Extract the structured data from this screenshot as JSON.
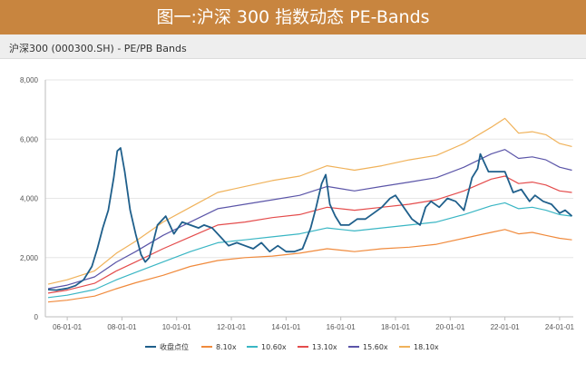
{
  "banner": {
    "title": "图一:沪深 300 指数动态 PE-Bands"
  },
  "header": {
    "subtitle": "沪深300 (000300.SH) - PE/PB Bands"
  },
  "chart_data": {
    "type": "line",
    "title": "沪深300 (000300.SH) - PE/PB Bands",
    "xlabel": "",
    "ylabel": "",
    "ylim": [
      0,
      8000
    ],
    "xlim": [
      2005.2,
      2024.5
    ],
    "grid": true,
    "legend": "bottom",
    "yticks": [
      "0",
      "2,000",
      "4,000",
      "6,000",
      "8,000"
    ],
    "ytick_values": [
      0,
      2000,
      4000,
      6000,
      8000
    ],
    "xticks": [
      "06-01-01",
      "08-01-01",
      "10-01-01",
      "12-01-01",
      "14-01-01",
      "16-01-01",
      "18-01-01",
      "20-01-01",
      "22-01-01",
      "24-01-01"
    ],
    "xtick_values": [
      2006,
      2008,
      2010,
      2012,
      2014,
      2016,
      2018,
      2020,
      2022,
      2024
    ],
    "series": [
      {
        "name": "收盘点位",
        "color": "#1f5f8b",
        "x": [
          2005.3,
          2005.6,
          2006.0,
          2006.3,
          2006.6,
          2006.9,
          2007.1,
          2007.3,
          2007.5,
          2007.7,
          2007.83,
          2007.95,
          2008.1,
          2008.3,
          2008.5,
          2008.7,
          2008.85,
          2009.0,
          2009.3,
          2009.6,
          2009.9,
          2010.2,
          2010.5,
          2010.8,
          2011.0,
          2011.3,
          2011.6,
          2011.9,
          2012.2,
          2012.5,
          2012.8,
          2013.1,
          2013.4,
          2013.7,
          2014.0,
          2014.3,
          2014.6,
          2014.9,
          2015.1,
          2015.3,
          2015.45,
          2015.6,
          2015.8,
          2016.0,
          2016.3,
          2016.6,
          2016.9,
          2017.2,
          2017.5,
          2017.8,
          2018.0,
          2018.3,
          2018.6,
          2018.9,
          2019.1,
          2019.3,
          2019.6,
          2019.9,
          2020.2,
          2020.5,
          2020.8,
          2021.0,
          2021.1,
          2021.4,
          2021.7,
          2022.0,
          2022.3,
          2022.6,
          2022.9,
          2023.1,
          2023.4,
          2023.7,
          2024.0,
          2024.2,
          2024.45
        ],
        "y": [
          920,
          900,
          960,
          1050,
          1250,
          1700,
          2300,
          3000,
          3600,
          4700,
          5600,
          5700,
          4900,
          3600,
          2800,
          2100,
          1850,
          2000,
          3100,
          3400,
          2800,
          3200,
          3100,
          3000,
          3100,
          3000,
          2700,
          2400,
          2500,
          2400,
          2300,
          2500,
          2200,
          2400,
          2200,
          2200,
          2300,
          3000,
          3700,
          4500,
          4800,
          3800,
          3400,
          3100,
          3100,
          3300,
          3300,
          3500,
          3700,
          4000,
          4100,
          3700,
          3300,
          3100,
          3700,
          3900,
          3700,
          4000,
          3900,
          3600,
          4700,
          5000,
          5500,
          4900,
          4900,
          4900,
          4200,
          4300,
          3900,
          4100,
          3900,
          3800,
          3500,
          3600,
          3400
        ]
      },
      {
        "name": "8.10x",
        "color": "#f08a3c",
        "x": [
          2005.3,
          2006.0,
          2007.0,
          2007.8,
          2008.5,
          2009.5,
          2010.5,
          2011.5,
          2012.5,
          2013.5,
          2014.5,
          2015.5,
          2016.5,
          2017.5,
          2018.5,
          2019.5,
          2020.5,
          2021.5,
          2022.0,
          2022.5,
          2023.0,
          2023.5,
          2024.0,
          2024.45
        ],
        "y": [
          500,
          560,
          700,
          950,
          1150,
          1400,
          1700,
          1900,
          2000,
          2050,
          2150,
          2300,
          2200,
          2300,
          2350,
          2450,
          2650,
          2850,
          2950,
          2800,
          2850,
          2750,
          2650,
          2600
        ]
      },
      {
        "name": "10.60x",
        "color": "#3ab6c4",
        "x": [
          2005.3,
          2006.0,
          2007.0,
          2007.8,
          2008.5,
          2009.5,
          2010.5,
          2011.5,
          2012.5,
          2013.5,
          2014.5,
          2015.5,
          2016.5,
          2017.5,
          2018.5,
          2019.5,
          2020.5,
          2021.5,
          2022.0,
          2022.5,
          2023.0,
          2023.5,
          2024.0,
          2024.45
        ],
        "y": [
          650,
          730,
          920,
          1250,
          1500,
          1850,
          2200,
          2500,
          2600,
          2700,
          2800,
          3000,
          2900,
          3000,
          3100,
          3200,
          3450,
          3750,
          3850,
          3650,
          3700,
          3600,
          3450,
          3400
        ]
      },
      {
        "name": "13.10x",
        "color": "#e44c4c",
        "x": [
          2005.3,
          2006.0,
          2007.0,
          2007.8,
          2008.5,
          2009.5,
          2010.5,
          2011.5,
          2012.5,
          2013.5,
          2014.5,
          2015.5,
          2016.5,
          2017.5,
          2018.5,
          2019.5,
          2020.5,
          2021.5,
          2022.0,
          2022.5,
          2023.0,
          2023.5,
          2024.0,
          2024.45
        ],
        "y": [
          800,
          900,
          1130,
          1550,
          1850,
          2300,
          2700,
          3100,
          3200,
          3350,
          3450,
          3700,
          3600,
          3700,
          3800,
          3950,
          4250,
          4650,
          4750,
          4500,
          4550,
          4450,
          4250,
          4200
        ]
      },
      {
        "name": "15.60x",
        "color": "#5b55a8",
        "x": [
          2005.3,
          2006.0,
          2007.0,
          2007.8,
          2008.5,
          2009.5,
          2010.5,
          2011.5,
          2012.5,
          2013.5,
          2014.5,
          2015.5,
          2016.5,
          2017.5,
          2018.5,
          2019.5,
          2020.5,
          2021.5,
          2022.0,
          2022.5,
          2023.0,
          2023.5,
          2024.0,
          2024.45
        ],
        "y": [
          950,
          1070,
          1350,
          1850,
          2200,
          2750,
          3200,
          3650,
          3800,
          3950,
          4100,
          4400,
          4250,
          4400,
          4550,
          4700,
          5050,
          5500,
          5650,
          5350,
          5400,
          5300,
          5050,
          4950
        ]
      },
      {
        "name": "18.10x",
        "color": "#f0b25a",
        "x": [
          2005.3,
          2006.0,
          2007.0,
          2007.8,
          2008.5,
          2009.5,
          2010.5,
          2011.5,
          2012.5,
          2013.5,
          2014.5,
          2015.5,
          2016.5,
          2017.5,
          2018.5,
          2019.5,
          2020.5,
          2021.5,
          2022.0,
          2022.5,
          2023.0,
          2023.5,
          2024.0,
          2024.45
        ],
        "y": [
          1100,
          1250,
          1550,
          2150,
          2550,
          3200,
          3700,
          4200,
          4400,
          4600,
          4750,
          5100,
          4950,
          5100,
          5300,
          5450,
          5850,
          6400,
          6700,
          6200,
          6250,
          6150,
          5850,
          5750
        ]
      }
    ]
  }
}
